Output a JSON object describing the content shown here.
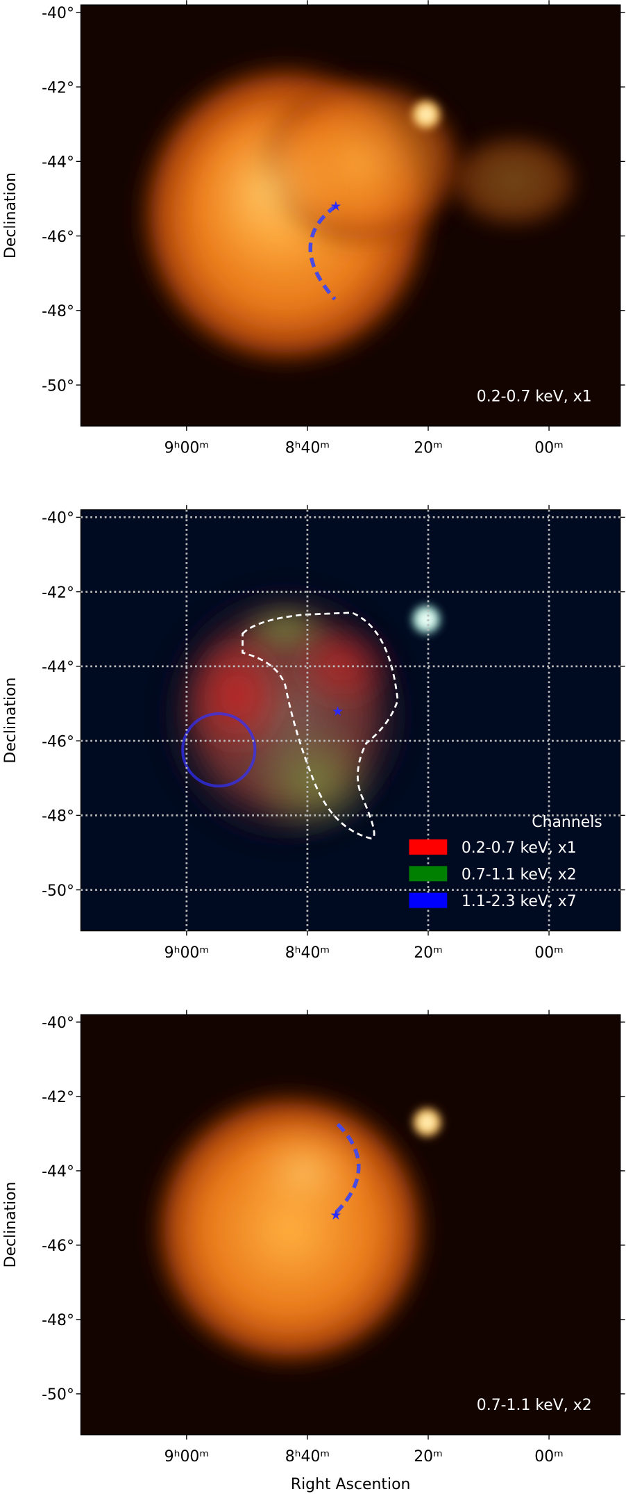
{
  "chart_data": [
    {
      "type": "image",
      "ylabel": "Declination",
      "annotation": "0.2-0.7 keV, x1",
      "xlim": [
        557.5,
        468.2
      ],
      "ylim": [
        -51.1,
        -39.8
      ],
      "xticks": [
        {
          "value": 540,
          "label": "9ʰ00ᵐ"
        },
        {
          "value": 520,
          "label": "8ʰ40ᵐ"
        },
        {
          "value": 500,
          "label": "20ᵐ"
        },
        {
          "value": 480,
          "label": "00ᵐ"
        }
      ],
      "yticks": [
        {
          "value": -40,
          "label": "-40°"
        },
        {
          "value": -42,
          "label": "-42°"
        },
        {
          "value": -44,
          "label": "-44°"
        },
        {
          "value": -46,
          "label": "-46°"
        },
        {
          "value": -48,
          "label": "-48°"
        },
        {
          "value": -50,
          "label": "-50°"
        }
      ]
    },
    {
      "type": "image",
      "ylabel": "Declination",
      "legend_title": "Channels",
      "grid": true,
      "series": [
        {
          "name": "0.2-0.7 keV, x1",
          "color": "#ff0000"
        },
        {
          "name": "0.7-1.1 keV, x2",
          "color": "#008000"
        },
        {
          "name": "1.1-2.3 keV, x7",
          "color": "#0000ff"
        }
      ],
      "xlim": [
        557.5,
        468.2
      ],
      "ylim": [
        -51.1,
        -39.8
      ],
      "xticks": [
        {
          "value": 540,
          "label": "9ʰ00ᵐ"
        },
        {
          "value": 520,
          "label": "8ʰ40ᵐ"
        },
        {
          "value": 500,
          "label": "20ᵐ"
        },
        {
          "value": 480,
          "label": "00ᵐ"
        }
      ],
      "yticks": [
        {
          "value": -40,
          "label": "-40°"
        },
        {
          "value": -42,
          "label": "-42°"
        },
        {
          "value": -44,
          "label": "-44°"
        },
        {
          "value": -46,
          "label": "-46°"
        },
        {
          "value": -48,
          "label": "-48°"
        },
        {
          "value": -50,
          "label": "-50°"
        }
      ]
    },
    {
      "type": "image",
      "ylabel": "Declination",
      "xlabel": "Right Ascention",
      "annotation": "0.7-1.1 keV, x2",
      "xlim": [
        557.5,
        468.2
      ],
      "ylim": [
        -51.1,
        -39.8
      ],
      "xticks": [
        {
          "value": 540,
          "label": "9ʰ00ᵐ"
        },
        {
          "value": 520,
          "label": "8ʰ40ᵐ"
        },
        {
          "value": 500,
          "label": "20ᵐ"
        },
        {
          "value": 480,
          "label": "00ᵐ"
        }
      ],
      "yticks": [
        {
          "value": -40,
          "label": "-40°"
        },
        {
          "value": -42,
          "label": "-42°"
        },
        {
          "value": -44,
          "label": "-44°"
        },
        {
          "value": -46,
          "label": "-46°"
        },
        {
          "value": -48,
          "label": "-48°"
        },
        {
          "value": -50,
          "label": "-50°"
        }
      ]
    }
  ]
}
